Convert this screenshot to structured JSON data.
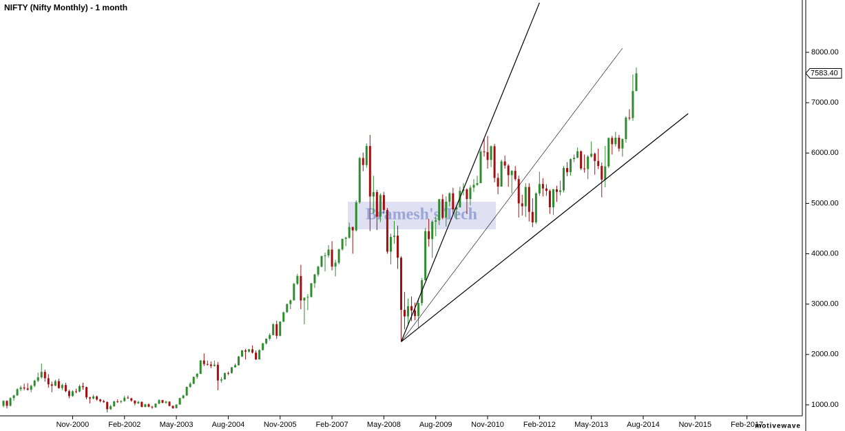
{
  "chart_data": {
    "type": "candlestick",
    "title": "NIFTY (Nifty Monthly) - 1 month",
    "watermark": "Bramesh's Tech",
    "brand": "motivewave",
    "up_color": "#2e8b2e",
    "down_color": "#a01010",
    "line_color": "#000000",
    "xlim": [
      "Feb-1999",
      "Jun-2018"
    ],
    "xticks": [
      "Nov-2000",
      "Feb-2002",
      "May-2003",
      "Aug-2004",
      "Nov-2005",
      "Feb-2007",
      "May-2008",
      "Aug-2009",
      "Nov-2010",
      "Feb-2012",
      "May-2013",
      "Aug-2014",
      "Nov-2015",
      "Feb-2017"
    ],
    "ylim": [
      781,
      9039
    ],
    "yticks": [
      {
        "value": 1000,
        "label": "1000.00"
      },
      {
        "value": 2000,
        "label": "2000.00"
      },
      {
        "value": 3000,
        "label": "3000.00"
      },
      {
        "value": 4000,
        "label": "4000.00"
      },
      {
        "value": 5000,
        "label": "5000.00"
      },
      {
        "value": 6000,
        "label": "6000.00"
      },
      {
        "value": 7000,
        "label": "7000.00"
      },
      {
        "value": 8000,
        "label": "8000.00"
      }
    ],
    "last_price": {
      "value": 7583.4,
      "label": "7583.40"
    },
    "trendlines": [
      {
        "start": [
          "Oct-2008",
          2252
        ],
        "end": [
          "Feb-2012",
          8985
        ]
      },
      {
        "start": [
          "Oct-2008",
          2252
        ],
        "end": [
          "Feb-2014",
          8082
        ]
      },
      {
        "start": [
          "Oct-2008",
          2252
        ],
        "end": [
          "Sep-2015",
          6783
        ]
      }
    ],
    "x": [
      "Mar-1999",
      "Apr-1999",
      "May-1999",
      "Jun-1999",
      "Jul-1999",
      "Aug-1999",
      "Sep-1999",
      "Oct-1999",
      "Nov-1999",
      "Dec-1999",
      "Jan-2000",
      "Feb-2000",
      "Mar-2000",
      "Apr-2000",
      "May-2000",
      "Jun-2000",
      "Jul-2000",
      "Aug-2000",
      "Sep-2000",
      "Oct-2000",
      "Nov-2000",
      "Dec-2000",
      "Jan-2001",
      "Feb-2001",
      "Mar-2001",
      "Apr-2001",
      "May-2001",
      "Jun-2001",
      "Jul-2001",
      "Aug-2001",
      "Sep-2001",
      "Oct-2001",
      "Nov-2001",
      "Dec-2001",
      "Jan-2002",
      "Feb-2002",
      "Mar-2002",
      "Apr-2002",
      "May-2002",
      "Jun-2002",
      "Jul-2002",
      "Aug-2002",
      "Sep-2002",
      "Oct-2002",
      "Nov-2002",
      "Dec-2002",
      "Jan-2003",
      "Feb-2003",
      "Mar-2003",
      "Apr-2003",
      "May-2003",
      "Jun-2003",
      "Jul-2003",
      "Aug-2003",
      "Sep-2003",
      "Oct-2003",
      "Nov-2003",
      "Dec-2003",
      "Jan-2004",
      "Feb-2004",
      "Mar-2004",
      "Apr-2004",
      "May-2004",
      "Jun-2004",
      "Jul-2004",
      "Aug-2004",
      "Sep-2004",
      "Oct-2004",
      "Nov-2004",
      "Dec-2004",
      "Jan-2005",
      "Feb-2005",
      "Mar-2005",
      "Apr-2005",
      "May-2005",
      "Jun-2005",
      "Jul-2005",
      "Aug-2005",
      "Sep-2005",
      "Oct-2005",
      "Nov-2005",
      "Dec-2005",
      "Jan-2006",
      "Feb-2006",
      "Mar-2006",
      "Apr-2006",
      "May-2006",
      "Jun-2006",
      "Jul-2006",
      "Aug-2006",
      "Sep-2006",
      "Oct-2006",
      "Nov-2006",
      "Dec-2006",
      "Jan-2007",
      "Feb-2007",
      "Mar-2007",
      "Apr-2007",
      "May-2007",
      "Jun-2007",
      "Jul-2007",
      "Aug-2007",
      "Sep-2007",
      "Oct-2007",
      "Nov-2007",
      "Dec-2007",
      "Jan-2008",
      "Feb-2008",
      "Mar-2008",
      "Apr-2008",
      "May-2008",
      "Jun-2008",
      "Jul-2008",
      "Aug-2008",
      "Sep-2008",
      "Oct-2008",
      "Nov-2008",
      "Dec-2008",
      "Jan-2009",
      "Feb-2009",
      "Mar-2009",
      "Apr-2009",
      "May-2009",
      "Jun-2009",
      "Jul-2009",
      "Aug-2009",
      "Sep-2009",
      "Oct-2009",
      "Nov-2009",
      "Dec-2009",
      "Jan-2010",
      "Feb-2010",
      "Mar-2010",
      "Apr-2010",
      "May-2010",
      "Jun-2010",
      "Jul-2010",
      "Aug-2010",
      "Sep-2010",
      "Oct-2010",
      "Nov-2010",
      "Dec-2010",
      "Jan-2011",
      "Feb-2011",
      "Mar-2011",
      "Apr-2011",
      "May-2011",
      "Jun-2011",
      "Jul-2011",
      "Aug-2011",
      "Sep-2011",
      "Oct-2011",
      "Nov-2011",
      "Dec-2011",
      "Jan-2012",
      "Feb-2012",
      "Mar-2012",
      "Apr-2012",
      "May-2012",
      "Jun-2012",
      "Jul-2012",
      "Aug-2012",
      "Sep-2012",
      "Oct-2012",
      "Nov-2012",
      "Dec-2012",
      "Jan-2013",
      "Feb-2013",
      "Mar-2013",
      "Apr-2013",
      "May-2013",
      "Jun-2013",
      "Jul-2013",
      "Aug-2013",
      "Sep-2013",
      "Oct-2013",
      "Nov-2013",
      "Dec-2013",
      "Jan-2014",
      "Feb-2014",
      "Mar-2014",
      "Apr-2014",
      "May-2014",
      "Jun-2014"
    ],
    "ohlc": [
      [
        980,
        1090,
        950,
        1078
      ],
      [
        1078,
        1090,
        930,
        980
      ],
      [
        980,
        1150,
        970,
        1132
      ],
      [
        1132,
        1200,
        1080,
        1187
      ],
      [
        1187,
        1330,
        1180,
        1310
      ],
      [
        1310,
        1380,
        1270,
        1345
      ],
      [
        1345,
        1420,
        1290,
        1325
      ],
      [
        1325,
        1430,
        1280,
        1301
      ],
      [
        1301,
        1400,
        1250,
        1378
      ],
      [
        1378,
        1500,
        1350,
        1480
      ],
      [
        1480,
        1640,
        1450,
        1546
      ],
      [
        1546,
        1820,
        1520,
        1654
      ],
      [
        1654,
        1700,
        1460,
        1528
      ],
      [
        1528,
        1610,
        1340,
        1406
      ],
      [
        1406,
        1460,
        1250,
        1380
      ],
      [
        1380,
        1500,
        1370,
        1471
      ],
      [
        1471,
        1520,
        1320,
        1332
      ],
      [
        1332,
        1420,
        1290,
        1394
      ],
      [
        1394,
        1440,
        1250,
        1271
      ],
      [
        1271,
        1300,
        1130,
        1173
      ],
      [
        1173,
        1290,
        1160,
        1268
      ],
      [
        1268,
        1320,
        1230,
        1263
      ],
      [
        1263,
        1400,
        1250,
        1371
      ],
      [
        1371,
        1440,
        1300,
        1352
      ],
      [
        1352,
        1360,
        1110,
        1148
      ],
      [
        1148,
        1160,
        1030,
        1126
      ],
      [
        1126,
        1200,
        1110,
        1167
      ],
      [
        1167,
        1180,
        1080,
        1107
      ],
      [
        1107,
        1120,
        1050,
        1073
      ],
      [
        1073,
        1100,
        1040,
        1053
      ],
      [
        1053,
        1070,
        850,
        913
      ],
      [
        913,
        1000,
        900,
        971
      ],
      [
        971,
        1080,
        960,
        1067
      ],
      [
        1067,
        1110,
        1040,
        1059
      ],
      [
        1059,
        1090,
        1030,
        1075
      ],
      [
        1075,
        1180,
        1060,
        1142
      ],
      [
        1142,
        1180,
        1120,
        1129
      ],
      [
        1129,
        1140,
        1060,
        1084
      ],
      [
        1084,
        1090,
        990,
        1028
      ],
      [
        1028,
        1080,
        1020,
        1057
      ],
      [
        1057,
        1070,
        950,
        958
      ],
      [
        958,
        1020,
        950,
        1010
      ],
      [
        1010,
        1030,
        950,
        963
      ],
      [
        963,
        980,
        920,
        949
      ],
      [
        949,
        1030,
        940,
        1024
      ],
      [
        1024,
        1110,
        1010,
        1093
      ],
      [
        1093,
        1100,
        1030,
        1042
      ],
      [
        1042,
        1080,
        1020,
        1063
      ],
      [
        1063,
        1070,
        970,
        978
      ],
      [
        978,
        990,
        920,
        934
      ],
      [
        934,
        1010,
        930,
        1006
      ],
      [
        1006,
        1140,
        1000,
        1134
      ],
      [
        1134,
        1200,
        1120,
        1185
      ],
      [
        1185,
        1360,
        1180,
        1356
      ],
      [
        1356,
        1450,
        1340,
        1418
      ],
      [
        1418,
        1560,
        1410,
        1556
      ],
      [
        1556,
        1630,
        1520,
        1615
      ],
      [
        1615,
        1890,
        1610,
        1880
      ],
      [
        1880,
        2020,
        1770,
        1809
      ],
      [
        1809,
        1880,
        1780,
        1800
      ],
      [
        1800,
        1860,
        1730,
        1771
      ],
      [
        1771,
        1880,
        1760,
        1796
      ],
      [
        1796,
        1850,
        1290,
        1483
      ],
      [
        1483,
        1550,
        1440,
        1505
      ],
      [
        1505,
        1640,
        1500,
        1632
      ],
      [
        1632,
        1660,
        1590,
        1631
      ],
      [
        1631,
        1750,
        1620,
        1745
      ],
      [
        1745,
        1820,
        1740,
        1786
      ],
      [
        1786,
        1970,
        1780,
        1959
      ],
      [
        1959,
        2090,
        1950,
        2080
      ],
      [
        2080,
        2110,
        1900,
        2057
      ],
      [
        2057,
        2110,
        2040,
        2103
      ],
      [
        2103,
        2180,
        2020,
        2036
      ],
      [
        2036,
        2080,
        1890,
        1902
      ],
      [
        1902,
        2100,
        1900,
        2087
      ],
      [
        2087,
        2230,
        2080,
        2221
      ],
      [
        2221,
        2320,
        2200,
        2312
      ],
      [
        2312,
        2420,
        2280,
        2385
      ],
      [
        2385,
        2620,
        2380,
        2601
      ],
      [
        2601,
        2670,
        2310,
        2371
      ],
      [
        2371,
        2660,
        2360,
        2652
      ],
      [
        2652,
        2850,
        2640,
        2837
      ],
      [
        2837,
        3010,
        2830,
        3001
      ],
      [
        3001,
        3090,
        2900,
        3074
      ],
      [
        3074,
        3420,
        3070,
        3403
      ],
      [
        3403,
        3600,
        3380,
        3558
      ],
      [
        3558,
        3780,
        2900,
        3072
      ],
      [
        3072,
        3130,
        2600,
        3128
      ],
      [
        3128,
        3200,
        2880,
        3143
      ],
      [
        3143,
        3420,
        3130,
        3414
      ],
      [
        3414,
        3600,
        3320,
        3588
      ],
      [
        3588,
        3760,
        3550,
        3744
      ],
      [
        3744,
        3960,
        3730,
        3955
      ],
      [
        3955,
        4020,
        3650,
        3966
      ],
      [
        3966,
        4170,
        3920,
        4083
      ],
      [
        4083,
        4250,
        3670,
        3745
      ],
      [
        3745,
        3880,
        3550,
        3822
      ],
      [
        3822,
        4100,
        3790,
        4088
      ],
      [
        4088,
        4300,
        4060,
        4296
      ],
      [
        4296,
        4340,
        4150,
        4318
      ],
      [
        4318,
        4620,
        4300,
        4529
      ],
      [
        4529,
        4540,
        4000,
        4464
      ],
      [
        4464,
        5060,
        4440,
        5021
      ],
      [
        5021,
        5920,
        4990,
        5901
      ],
      [
        5901,
        6010,
        5640,
        5762
      ],
      [
        5762,
        6190,
        5710,
        6139
      ],
      [
        6139,
        6360,
        4450,
        5137
      ],
      [
        5137,
        5550,
        4800,
        5224
      ],
      [
        5224,
        5270,
        4470,
        4735
      ],
      [
        4735,
        5200,
        4630,
        5166
      ],
      [
        5166,
        5230,
        4800,
        4870
      ],
      [
        4870,
        4910,
        4000,
        4041
      ],
      [
        4041,
        4400,
        3790,
        4333
      ],
      [
        4333,
        4650,
        4200,
        4360
      ],
      [
        4360,
        4560,
        3700,
        3921
      ],
      [
        3921,
        3950,
        2250,
        2885
      ],
      [
        2885,
        3240,
        2500,
        2755
      ],
      [
        2755,
        3110,
        2570,
        2959
      ],
      [
        2959,
        3150,
        2660,
        2874
      ],
      [
        2874,
        3030,
        2680,
        2763
      ],
      [
        2763,
        3120,
        2540,
        3021
      ],
      [
        3021,
        3520,
        2970,
        3474
      ],
      [
        3474,
        4510,
        3470,
        4449
      ],
      [
        4449,
        4690,
        4140,
        4291
      ],
      [
        4291,
        4670,
        3920,
        4636
      ],
      [
        4636,
        4740,
        4350,
        4662
      ],
      [
        4662,
        5090,
        4570,
        5084
      ],
      [
        5084,
        5180,
        4680,
        4712
      ],
      [
        4712,
        5140,
        4540,
        5033
      ],
      [
        5033,
        5220,
        4940,
        5201
      ],
      [
        5201,
        5310,
        4770,
        4882
      ],
      [
        4882,
        4950,
        4680,
        4922
      ],
      [
        4922,
        5330,
        4920,
        5249
      ],
      [
        5249,
        5400,
        5160,
        5278
      ],
      [
        5278,
        5300,
        4790,
        5087
      ],
      [
        5087,
        5360,
        4960,
        5313
      ],
      [
        5313,
        5480,
        5230,
        5368
      ],
      [
        5368,
        5550,
        5350,
        5402
      ],
      [
        5402,
        6070,
        5400,
        6030
      ],
      [
        6030,
        6290,
        5930,
        6018
      ],
      [
        6018,
        6340,
        5690,
        5863
      ],
      [
        5863,
        6150,
        5720,
        6135
      ],
      [
        6135,
        6180,
        5420,
        5506
      ],
      [
        5506,
        5600,
        5180,
        5334
      ],
      [
        5334,
        5870,
        5330,
        5834
      ],
      [
        5834,
        5950,
        5690,
        5750
      ],
      [
        5750,
        5780,
        5330,
        5561
      ],
      [
        5561,
        5660,
        5200,
        5647
      ],
      [
        5647,
        5740,
        5450,
        5482
      ],
      [
        5482,
        5550,
        4720,
        5001
      ],
      [
        5001,
        5170,
        4760,
        4943
      ],
      [
        4943,
        5400,
        4730,
        5327
      ],
      [
        5327,
        5400,
        4640,
        4832
      ],
      [
        4832,
        5100,
        4530,
        4624
      ],
      [
        4624,
        5220,
        4590,
        5199
      ],
      [
        5199,
        5630,
        5150,
        5385
      ],
      [
        5385,
        5500,
        5140,
        5296
      ],
      [
        5296,
        5380,
        5150,
        5248
      ],
      [
        5248,
        5280,
        4790,
        4924
      ],
      [
        4924,
        5290,
        4770,
        5279
      ],
      [
        5279,
        5350,
        5030,
        5229
      ],
      [
        5229,
        5450,
        5160,
        5259
      ],
      [
        5259,
        5740,
        5220,
        5703
      ],
      [
        5703,
        5820,
        5540,
        5620
      ],
      [
        5620,
        5890,
        5550,
        5880
      ],
      [
        5880,
        5970,
        5820,
        5905
      ],
      [
        5905,
        6110,
        5900,
        6035
      ],
      [
        6035,
        6050,
        5660,
        5693
      ],
      [
        5693,
        5970,
        5610,
        5683
      ],
      [
        5683,
        5960,
        5480,
        5930
      ],
      [
        5930,
        6230,
        5910,
        5986
      ],
      [
        5986,
        6010,
        5570,
        5842
      ],
      [
        5842,
        6090,
        5680,
        5742
      ],
      [
        5742,
        5810,
        5120,
        5472
      ],
      [
        5472,
        6140,
        5320,
        5735
      ],
      [
        5735,
        6310,
        5700,
        6299
      ],
      [
        6299,
        6340,
        5970,
        6176
      ],
      [
        6176,
        6420,
        6130,
        6304
      ],
      [
        6304,
        6360,
        6030,
        6090
      ],
      [
        6090,
        6290,
        5930,
        6277
      ],
      [
        6277,
        6730,
        6210,
        6704
      ],
      [
        6704,
        6870,
        6650,
        6696
      ],
      [
        6696,
        7560,
        6640,
        7230
      ],
      [
        7230,
        7700,
        7230,
        7583.4
      ]
    ]
  }
}
